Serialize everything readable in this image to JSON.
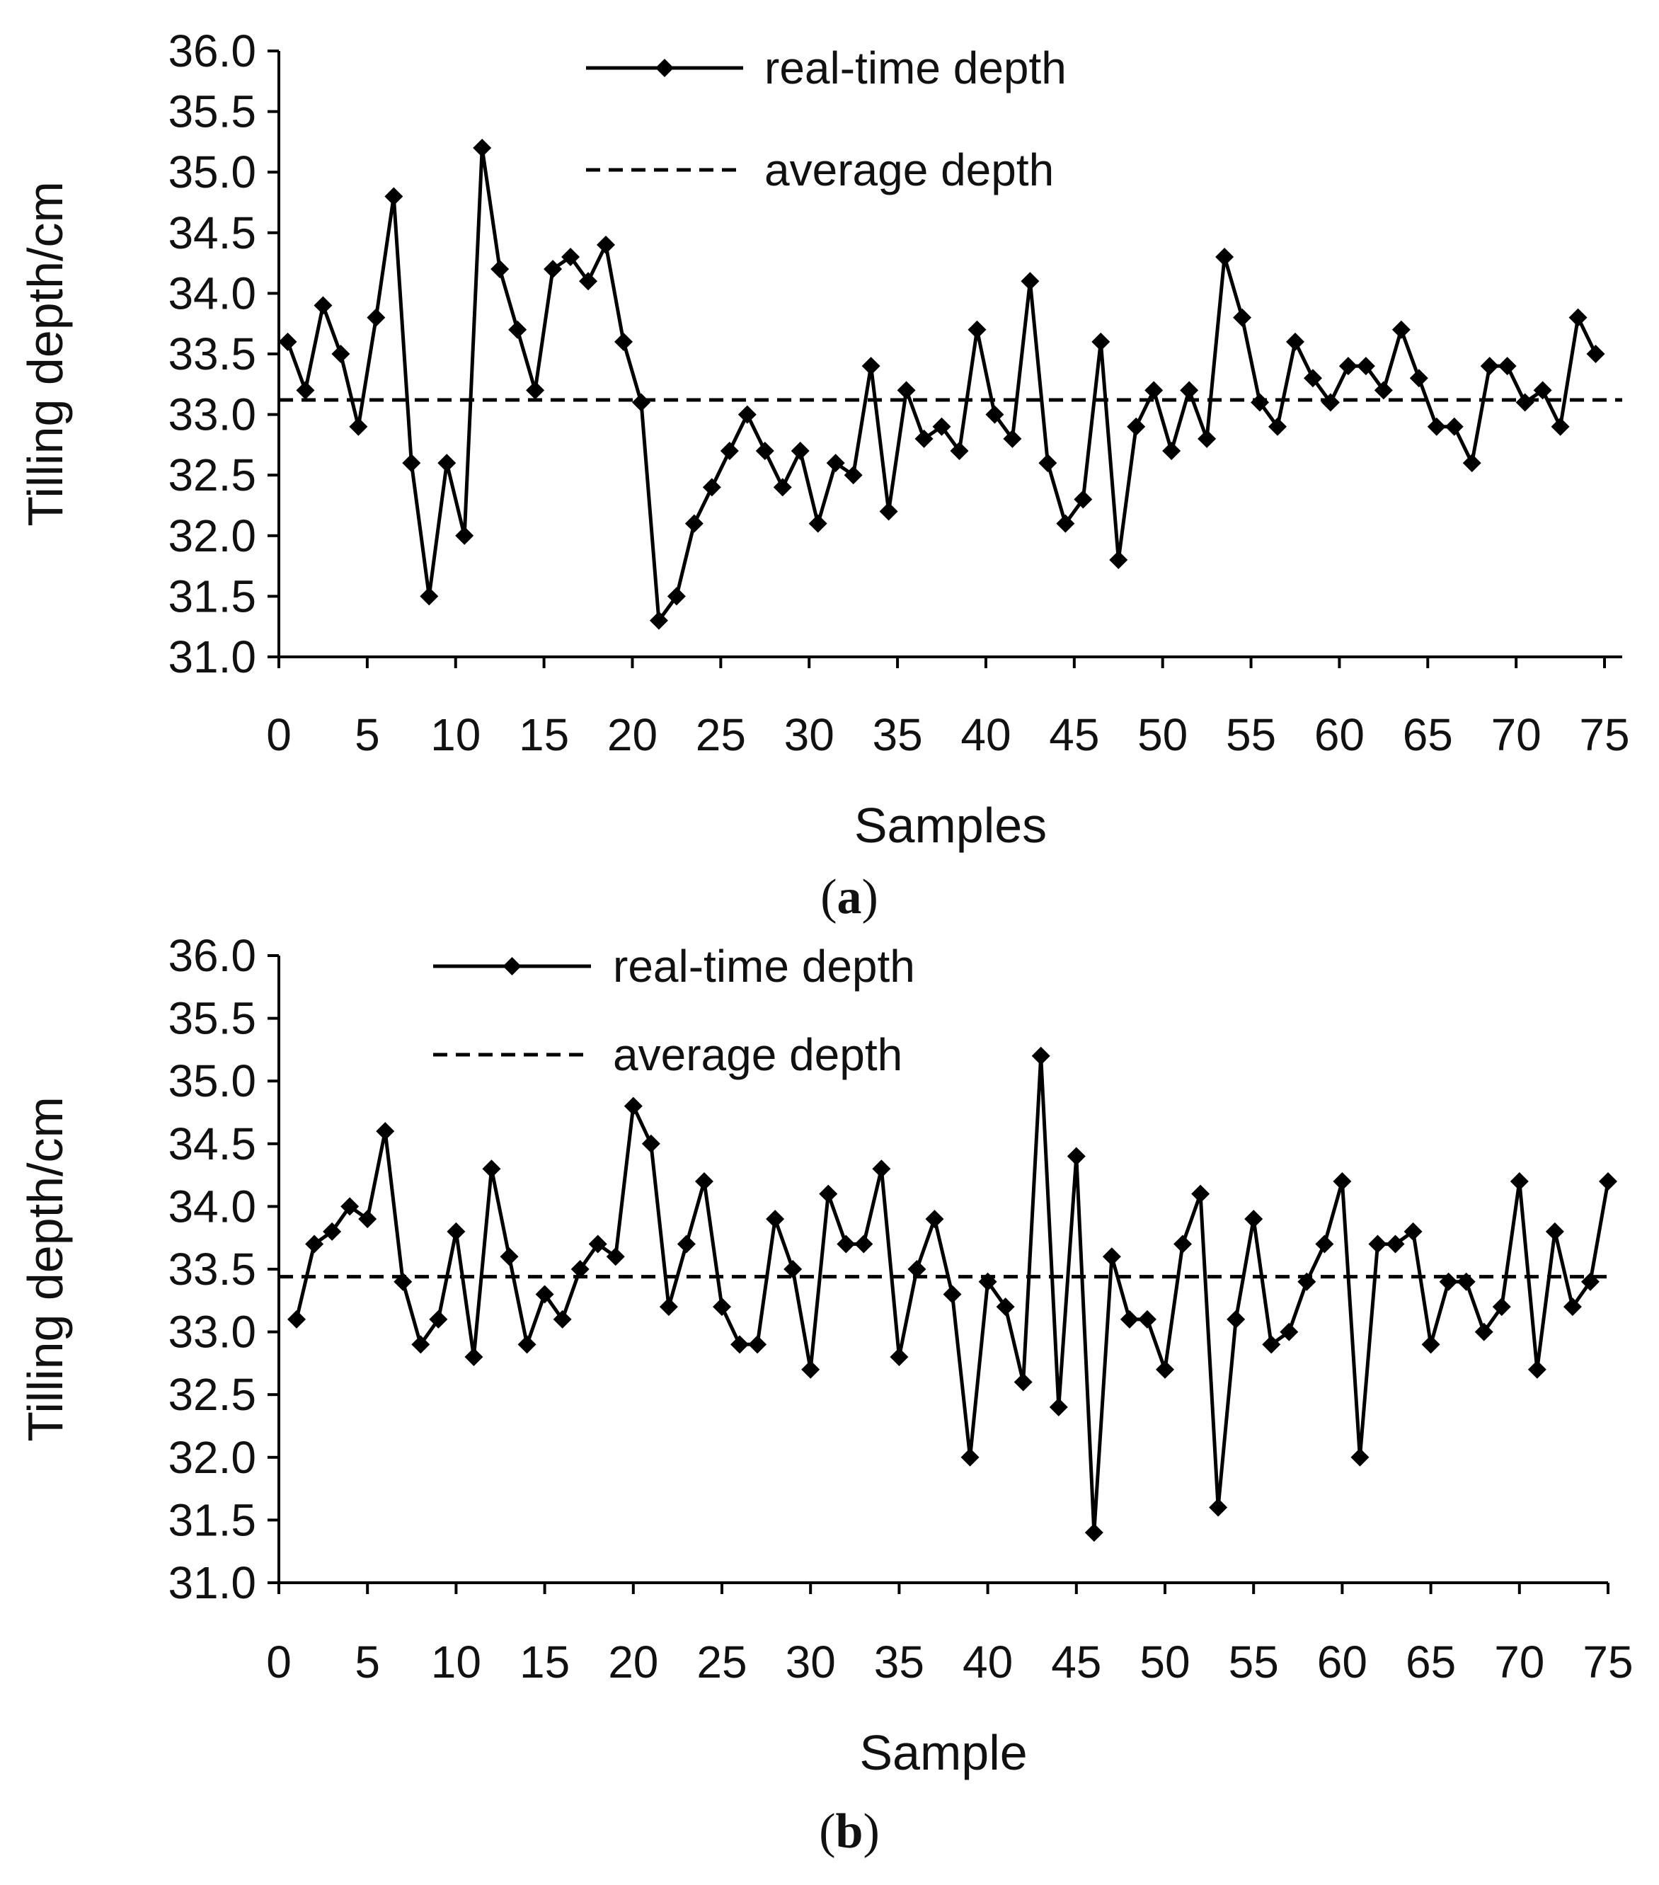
{
  "chart_data": [
    {
      "type": "line",
      "panel": "a",
      "caption_open": "(",
      "caption_letter": "a",
      "caption_close": ")",
      "xlabel": "Samples",
      "ylabel": "Tilling depth/cm",
      "xlim": [
        0,
        76
      ],
      "ylim": [
        31.0,
        36.0
      ],
      "xticks": [
        "0",
        "5",
        "10",
        "15",
        "20",
        "25",
        "30",
        "35",
        "40",
        "45",
        "50",
        "55",
        "60",
        "65",
        "70",
        "75"
      ],
      "yticks": [
        "31.0",
        "31.5",
        "32.0",
        "32.5",
        "33.0",
        "33.5",
        "34.0",
        "34.5",
        "35.0",
        "35.5",
        "36.0"
      ],
      "series": [
        {
          "name": "real-time depth",
          "style": "solid-diamond",
          "color": "#000000",
          "x": [
            0.5,
            1.5,
            2.5,
            3.5,
            4.5,
            5.5,
            6.5,
            7.5,
            8.5,
            9.5,
            10.5,
            11.5,
            12.5,
            13.5,
            14.5,
            15.5,
            16.5,
            17.5,
            18.5,
            19.5,
            20.5,
            21.5,
            22.5,
            23.5,
            24.5,
            25.5,
            26.5,
            27.5,
            28.5,
            29.5,
            30.5,
            31.5,
            32.5,
            33.5,
            34.5,
            35.5,
            36.5,
            37.5,
            38.5,
            39.5,
            40.5,
            41.5,
            42.5,
            43.5,
            44.5,
            45.5,
            46.5,
            47.5,
            48.5,
            49.5,
            50.5,
            51.5,
            52.5,
            53.5,
            54.5,
            55.5,
            56.5,
            57.5,
            58.5,
            59.5,
            60.5,
            61.5,
            62.5,
            63.5,
            64.5,
            65.5,
            66.5,
            67.5,
            68.5,
            69.5,
            70.5,
            71.5,
            72.5,
            73.5,
            74.5
          ],
          "values": [
            33.6,
            33.2,
            33.9,
            33.5,
            32.9,
            33.8,
            34.8,
            32.6,
            31.5,
            32.6,
            32.0,
            35.2,
            34.2,
            33.7,
            33.2,
            34.2,
            34.3,
            34.1,
            34.4,
            33.6,
            33.1,
            31.3,
            31.5,
            32.1,
            32.4,
            32.7,
            33.0,
            32.7,
            32.4,
            32.7,
            32.1,
            32.6,
            32.5,
            33.4,
            32.2,
            33.2,
            32.8,
            32.9,
            32.7,
            33.7,
            33.0,
            32.8,
            34.1,
            32.6,
            32.1,
            32.3,
            33.6,
            31.8,
            32.9,
            33.2,
            32.7,
            33.2,
            32.8,
            34.3,
            33.8,
            33.1,
            32.9,
            33.6,
            33.3,
            33.1,
            33.4,
            33.4,
            33.2,
            33.7,
            33.3,
            32.9,
            32.9,
            32.6,
            33.4,
            33.4,
            33.1,
            33.2,
            32.9,
            33.8,
            33.5
          ]
        },
        {
          "name": "average depth",
          "style": "dashed",
          "color": "#000000",
          "value": 33.12
        }
      ]
    },
    {
      "type": "line",
      "panel": "b",
      "caption_open": "(",
      "caption_letter": "b",
      "caption_close": ")",
      "xlabel": "Sample",
      "ylabel": "Tilling depth/cm",
      "xlim": [
        0,
        75
      ],
      "ylim": [
        31.0,
        36.0
      ],
      "xticks": [
        "0",
        "5",
        "10",
        "15",
        "20",
        "25",
        "30",
        "35",
        "40",
        "45",
        "50",
        "55",
        "60",
        "65",
        "70",
        "75"
      ],
      "yticks": [
        "31.0",
        "31.5",
        "32.0",
        "32.5",
        "33.0",
        "33.5",
        "34.0",
        "34.5",
        "35.0",
        "35.5",
        "36.0"
      ],
      "series": [
        {
          "name": "real-time depth",
          "style": "solid-diamond",
          "color": "#000000",
          "x": [
            1,
            2,
            3,
            4,
            5,
            6,
            7,
            8,
            9,
            10,
            11,
            12,
            13,
            14,
            15,
            16,
            17,
            18,
            19,
            20,
            21,
            22,
            23,
            24,
            25,
            26,
            27,
            28,
            29,
            30,
            31,
            32,
            33,
            34,
            35,
            36,
            37,
            38,
            39,
            40,
            41,
            42,
            43,
            44,
            45,
            46,
            47,
            48,
            49,
            50,
            51,
            52,
            53,
            54,
            55,
            56,
            57,
            58,
            59,
            60,
            61,
            62,
            63,
            64,
            65,
            66,
            67,
            68,
            69,
            70,
            71,
            72,
            73,
            74,
            75
          ],
          "values": [
            33.1,
            33.7,
            33.8,
            34.0,
            33.9,
            34.6,
            33.4,
            32.9,
            33.1,
            33.8,
            32.8,
            34.3,
            33.6,
            32.9,
            33.3,
            33.1,
            33.5,
            33.7,
            33.6,
            34.8,
            34.5,
            33.2,
            33.7,
            34.2,
            33.2,
            32.9,
            32.9,
            33.9,
            33.5,
            32.7,
            34.1,
            33.7,
            33.7,
            34.3,
            32.8,
            33.5,
            33.9,
            33.3,
            32.0,
            33.4,
            33.2,
            32.6,
            35.2,
            32.4,
            34.4,
            31.4,
            33.6,
            33.1,
            33.1,
            32.7,
            33.7,
            34.1,
            31.6,
            33.1,
            33.9,
            32.9,
            33.0,
            33.4,
            33.7,
            34.2,
            32.0,
            33.7,
            33.7,
            33.8,
            32.9,
            33.4,
            33.4,
            33.0,
            33.2,
            34.2,
            32.7,
            33.8,
            33.2,
            33.4,
            34.2
          ]
        },
        {
          "name": "average depth",
          "style": "dashed",
          "color": "#000000",
          "value": 33.44
        }
      ]
    }
  ]
}
